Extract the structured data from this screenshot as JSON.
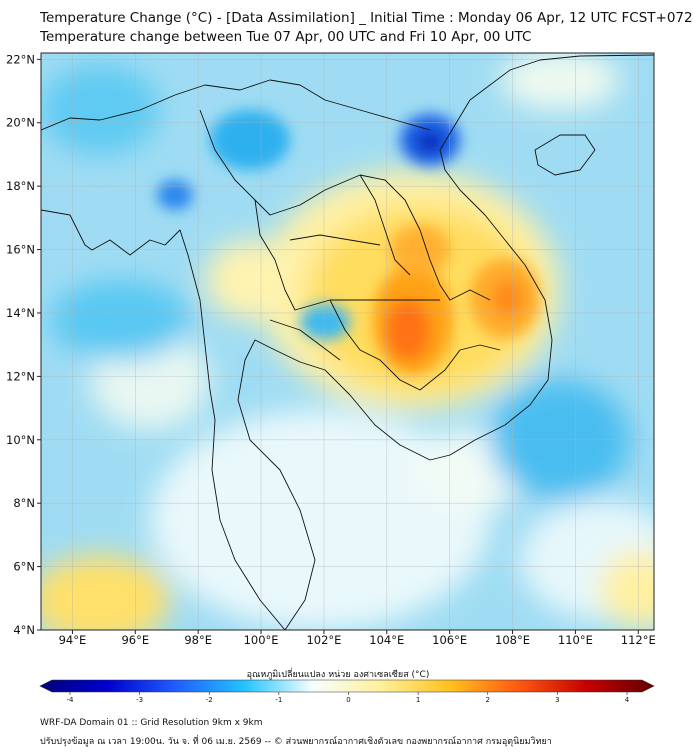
{
  "title": {
    "line1": "Temperature Change (°C) - [Data Assimilation] _ Initial Time : Monday 06 Apr, 12 UTC FCST+072",
    "line2": "Temperature change between Tue 07 Apr, 00 UTC and Fri 10 Apr, 00 UTC"
  },
  "map": {
    "lon_range": [
      93,
      112.5
    ],
    "lat_range": [
      4,
      22.2
    ],
    "lon_ticks": [
      {
        "value": 94,
        "label": "94°E"
      },
      {
        "value": 96,
        "label": "96°E"
      },
      {
        "value": 98,
        "label": "98°E"
      },
      {
        "value": 100,
        "label": "100°E"
      },
      {
        "value": 102,
        "label": "102°E"
      },
      {
        "value": 104,
        "label": "104°E"
      },
      {
        "value": 106,
        "label": "106°E"
      },
      {
        "value": 108,
        "label": "108°E"
      },
      {
        "value": 110,
        "label": "110°E"
      },
      {
        "value": 112,
        "label": "112°E"
      }
    ],
    "lat_ticks": [
      {
        "value": 4,
        "label": "4°N"
      },
      {
        "value": 6,
        "label": "6°N"
      },
      {
        "value": 8,
        "label": "8°N"
      },
      {
        "value": 10,
        "label": "10°N"
      },
      {
        "value": 12,
        "label": "12°N"
      },
      {
        "value": 14,
        "label": "14°N"
      },
      {
        "value": 16,
        "label": "16°N"
      },
      {
        "value": 18,
        "label": "18°N"
      },
      {
        "value": 20,
        "label": "20°N"
      },
      {
        "value": 22,
        "label": "22°N"
      }
    ],
    "features": [
      {
        "name": "warm-core-east-thailand",
        "lon": 104.8,
        "lat": 13.5,
        "change": 2.6
      },
      {
        "name": "warm-core-vietnam-highlands",
        "lon": 107.8,
        "lat": 14.3,
        "change": 2.4
      },
      {
        "name": "warm-core-laos",
        "lon": 105.0,
        "lat": 15.8,
        "change": 2.2
      },
      {
        "name": "cold-core-gulf-of-tonkin",
        "lon": 105.3,
        "lat": 19.3,
        "change": -3.2
      },
      {
        "name": "cold-core-northwest-myanmar",
        "lon": 97.0,
        "lat": 17.8,
        "change": -2.0
      },
      {
        "name": "cool-area-bangkok",
        "lon": 101.3,
        "lat": 13.9,
        "change": -1.2
      },
      {
        "name": "warm-area-andaman-south",
        "lon": 95.0,
        "lat": 4.8,
        "change": 1.5
      }
    ]
  },
  "colorbar": {
    "title": "อุณหภูมิเปลี่ยนแปลง หน่วย องศาเซลเซียส (°C)",
    "min": -4,
    "max": 4,
    "ticks": [
      "-4",
      "-3",
      "-2",
      "-1",
      "0",
      "1",
      "2",
      "3",
      "4"
    ],
    "colors": [
      "#00007a",
      "#0000d0",
      "#1f5fff",
      "#22c4ff",
      "#f6ffff",
      "#fff09a",
      "#ffc21e",
      "#ff5a10",
      "#c80000",
      "#620000"
    ]
  },
  "footer": {
    "line1": "WRF-DA Domain 01 :: Grid Resolution 9km x 9km",
    "line2": "ปรับปรุงข้อมูล ณ เวลา 19:00น. วัน จ. ที่ 06 เม.ย. 2569 -- © ส่วนพยากรณ์อากาศเชิงตัวเลข กองพยากรณ์อากาศ กรมอุตุนิยมวิทยา"
  }
}
